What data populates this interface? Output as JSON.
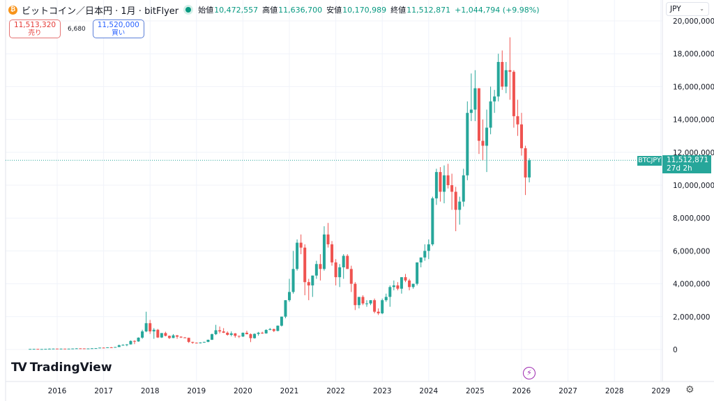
{
  "header": {
    "title": "ビットコイン／日本円 · 1月 · bitFlyer",
    "coin_icon": "bitcoin-icon",
    "open_label": "始値",
    "open": "10,472,557",
    "high_label": "高値",
    "high": "11,636,700",
    "low_label": "安値",
    "low": "10,170,989",
    "close_label": "終値",
    "close": "11,512,871",
    "change": "+1,044,794 (+9.98%)"
  },
  "trade": {
    "sell_price": "11,513,320",
    "sell_label": "売り",
    "spread": "6,680",
    "buy_price": "11,520,000",
    "buy_label": "買い"
  },
  "currency": "JPY",
  "price_label": {
    "symbol": "BTCJPY",
    "price": "11,512,871",
    "countdown": "27d 2h"
  },
  "logo": "TradingView",
  "colors": {
    "up": "#26a69a",
    "down": "#ef5350",
    "accent": "#26a69a"
  },
  "chart_data": {
    "type": "candlestick",
    "interval": "1 month",
    "y_ticks": [
      "0",
      "2,000,000",
      "4,000,000",
      "6,000,000",
      "8,000,000",
      "10,000,000",
      "12,000,000",
      "14,000,000",
      "16,000,000",
      "18,000,000",
      "20,000,000"
    ],
    "x_ticks": [
      "2016",
      "2017",
      "2018",
      "2019",
      "2020",
      "2021",
      "2022",
      "2023",
      "2024",
      "2025",
      "2026",
      "2027",
      "2028",
      "2029"
    ],
    "ylim": [
      0,
      20000000
    ],
    "grid": true,
    "last_price": 11512871,
    "columns": [
      "month",
      "open",
      "high",
      "low",
      "close"
    ],
    "candles": [
      [
        "2015-06",
        28000,
        33000,
        27000,
        32000
      ],
      [
        "2015-07",
        32000,
        38000,
        31000,
        35000
      ],
      [
        "2015-08",
        35000,
        36000,
        25000,
        28000
      ],
      [
        "2015-09",
        28000,
        30000,
        27000,
        29000
      ],
      [
        "2015-10",
        29000,
        40000,
        28000,
        37000
      ],
      [
        "2015-11",
        37000,
        60000,
        36000,
        46000
      ],
      [
        "2015-12",
        46000,
        56000,
        43000,
        52000
      ],
      [
        "2016-01",
        52000,
        55000,
        42000,
        45000
      ],
      [
        "2016-02",
        45000,
        52000,
        43000,
        50000
      ],
      [
        "2016-03",
        50000,
        51000,
        45000,
        47000
      ],
      [
        "2016-04",
        47000,
        52000,
        46000,
        50000
      ],
      [
        "2016-05",
        50000,
        60000,
        48000,
        58000
      ],
      [
        "2016-06",
        58000,
        80000,
        56000,
        68000
      ],
      [
        "2016-07",
        68000,
        72000,
        60000,
        65000
      ],
      [
        "2016-08",
        65000,
        67000,
        55000,
        60000
      ],
      [
        "2016-09",
        60000,
        64000,
        58000,
        62000
      ],
      [
        "2016-10",
        62000,
        75000,
        60000,
        73000
      ],
      [
        "2016-11",
        73000,
        85000,
        70000,
        80000
      ],
      [
        "2016-12",
        80000,
        115000,
        78000,
        112000
      ],
      [
        "2017-01",
        112000,
        125000,
        90000,
        110000
      ],
      [
        "2017-02",
        110000,
        135000,
        105000,
        130000
      ],
      [
        "2017-03",
        130000,
        150000,
        105000,
        120000
      ],
      [
        "2017-04",
        120000,
        155000,
        118000,
        150000
      ],
      [
        "2017-05",
        150000,
        300000,
        148000,
        255000
      ],
      [
        "2017-06",
        255000,
        320000,
        230000,
        280000
      ],
      [
        "2017-07",
        280000,
        330000,
        200000,
        310000
      ],
      [
        "2017-08",
        310000,
        550000,
        300000,
        520000
      ],
      [
        "2017-09",
        520000,
        560000,
        330000,
        490000
      ],
      [
        "2017-10",
        490000,
        740000,
        470000,
        720000
      ],
      [
        "2017-11",
        720000,
        1200000,
        650000,
        1100000
      ],
      [
        "2017-12",
        1100000,
        2300000,
        1050000,
        1600000
      ],
      [
        "2018-01",
        1600000,
        1800000,
        950000,
        1100000
      ],
      [
        "2018-02",
        1100000,
        1300000,
        650000,
        1200000
      ],
      [
        "2018-03",
        1200000,
        1250000,
        700000,
        730000
      ],
      [
        "2018-04",
        730000,
        1000000,
        700000,
        1000000
      ],
      [
        "2018-05",
        1000000,
        1080000,
        800000,
        830000
      ],
      [
        "2018-06",
        830000,
        850000,
        640000,
        700000
      ],
      [
        "2018-07",
        700000,
        940000,
        690000,
        860000
      ],
      [
        "2018-08",
        860000,
        880000,
        650000,
        780000
      ],
      [
        "2018-09",
        780000,
        800000,
        700000,
        730000
      ],
      [
        "2018-10",
        730000,
        760000,
        700000,
        710000
      ],
      [
        "2018-11",
        710000,
        720000,
        400000,
        460000
      ],
      [
        "2018-12",
        460000,
        470000,
        350000,
        410000
      ],
      [
        "2019-01",
        410000,
        430000,
        370000,
        380000
      ],
      [
        "2019-02",
        380000,
        440000,
        370000,
        420000
      ],
      [
        "2019-03",
        420000,
        470000,
        410000,
        460000
      ],
      [
        "2019-04",
        460000,
        600000,
        450000,
        590000
      ],
      [
        "2019-05",
        590000,
        970000,
        580000,
        930000
      ],
      [
        "2019-06",
        930000,
        1500000,
        880000,
        1170000
      ],
      [
        "2019-07",
        1170000,
        1400000,
        980000,
        1100000
      ],
      [
        "2019-08",
        1100000,
        1300000,
        1000000,
        1020000
      ],
      [
        "2019-09",
        1020000,
        1100000,
        840000,
        890000
      ],
      [
        "2019-10",
        890000,
        1100000,
        800000,
        980000
      ],
      [
        "2019-11",
        980000,
        1000000,
        720000,
        830000
      ],
      [
        "2019-12",
        830000,
        830000,
        700000,
        790000
      ],
      [
        "2020-01",
        790000,
        1030000,
        760000,
        1020000
      ],
      [
        "2020-02",
        1020000,
        1140000,
        920000,
        930000
      ],
      [
        "2020-03",
        930000,
        980000,
        450000,
        690000
      ],
      [
        "2020-04",
        690000,
        980000,
        660000,
        950000
      ],
      [
        "2020-05",
        950000,
        1070000,
        840000,
        1020000
      ],
      [
        "2020-06",
        1020000,
        1080000,
        950000,
        980000
      ],
      [
        "2020-07",
        980000,
        1230000,
        960000,
        1190000
      ],
      [
        "2020-08",
        1190000,
        1310000,
        1170000,
        1240000
      ],
      [
        "2020-09",
        1240000,
        1270000,
        1060000,
        1130000
      ],
      [
        "2020-10",
        1130000,
        1460000,
        1110000,
        1450000
      ],
      [
        "2020-11",
        1450000,
        2000000,
        1400000,
        2000000
      ],
      [
        "2020-12",
        2000000,
        3000000,
        1900000,
        3000000
      ],
      [
        "2021-01",
        3000000,
        4300000,
        2900000,
        3500000
      ],
      [
        "2021-02",
        3500000,
        6000000,
        3400000,
        4900000
      ],
      [
        "2021-03",
        4900000,
        6700000,
        4800000,
        6500000
      ],
      [
        "2021-04",
        6500000,
        7000000,
        5800000,
        6200000
      ],
      [
        "2021-05",
        6200000,
        6400000,
        3300000,
        4100000
      ],
      [
        "2021-06",
        4100000,
        4300000,
        3000000,
        3900000
      ],
      [
        "2021-07",
        3900000,
        4500000,
        3200000,
        4500000
      ],
      [
        "2021-08",
        4500000,
        5400000,
        4300000,
        5200000
      ],
      [
        "2021-09",
        5200000,
        5800000,
        4200000,
        4900000
      ],
      [
        "2021-10",
        4900000,
        7500000,
        4800000,
        7000000
      ],
      [
        "2021-11",
        7000000,
        7700000,
        6200000,
        6400000
      ],
      [
        "2021-12",
        6400000,
        6600000,
        5100000,
        5300000
      ],
      [
        "2022-01",
        5300000,
        5500000,
        3900000,
        4400000
      ],
      [
        "2022-02",
        4400000,
        5200000,
        3800000,
        5000000
      ],
      [
        "2022-03",
        5000000,
        5800000,
        4300000,
        5700000
      ],
      [
        "2022-04",
        5700000,
        5800000,
        4900000,
        4900000
      ],
      [
        "2022-05",
        4900000,
        5100000,
        3500000,
        4000000
      ],
      [
        "2022-06",
        4000000,
        4100000,
        2400000,
        2700000
      ],
      [
        "2022-07",
        2700000,
        3200000,
        2500000,
        3200000
      ],
      [
        "2022-08",
        3200000,
        3300000,
        2700000,
        2800000
      ],
      [
        "2022-09",
        2800000,
        3000000,
        2600000,
        2800000
      ],
      [
        "2022-10",
        2800000,
        3000000,
        2700000,
        3000000
      ],
      [
        "2022-11",
        3000000,
        3100000,
        2200000,
        2300000
      ],
      [
        "2022-12",
        2300000,
        2500000,
        2100000,
        2200000
      ],
      [
        "2023-01",
        2200000,
        3100000,
        2150000,
        3000000
      ],
      [
        "2023-02",
        3000000,
        3400000,
        2900000,
        3200000
      ],
      [
        "2023-03",
        3200000,
        3900000,
        2600000,
        3800000
      ],
      [
        "2023-04",
        3800000,
        4200000,
        3600000,
        3900000
      ],
      [
        "2023-05",
        3900000,
        4100000,
        3600000,
        3700000
      ],
      [
        "2023-06",
        3700000,
        4400000,
        3400000,
        4400000
      ],
      [
        "2023-07",
        4400000,
        4600000,
        4100000,
        4200000
      ],
      [
        "2023-08",
        4200000,
        4300000,
        3600000,
        3800000
      ],
      [
        "2023-09",
        3800000,
        4000000,
        3700000,
        4000000
      ],
      [
        "2023-10",
        4000000,
        5300000,
        3900000,
        5300000
      ],
      [
        "2023-11",
        5300000,
        5600000,
        5000000,
        5600000
      ],
      [
        "2023-12",
        5600000,
        6400000,
        5400000,
        6000000
      ],
      [
        "2024-01",
        6000000,
        6700000,
        5500000,
        6400000
      ],
      [
        "2024-02",
        6400000,
        9300000,
        6300000,
        9200000
      ],
      [
        "2024-03",
        9200000,
        11000000,
        8800000,
        10800000
      ],
      [
        "2024-04",
        10800000,
        11100000,
        9000000,
        9600000
      ],
      [
        "2024-05",
        9600000,
        11200000,
        8900000,
        10600000
      ],
      [
        "2024-06",
        10600000,
        11300000,
        9800000,
        10000000
      ],
      [
        "2024-07",
        10000000,
        10700000,
        8500000,
        9600000
      ],
      [
        "2024-08",
        9600000,
        9900000,
        7200000,
        8500000
      ],
      [
        "2024-09",
        8500000,
        9300000,
        7600000,
        9000000
      ],
      [
        "2024-10",
        9000000,
        11000000,
        8700000,
        10600000
      ],
      [
        "2024-11",
        10600000,
        15100000,
        10300000,
        14400000
      ],
      [
        "2024-12",
        14400000,
        16800000,
        13900000,
        14600000
      ],
      [
        "2025-01",
        14600000,
        17000000,
        13900000,
        15900000
      ],
      [
        "2025-02",
        15900000,
        15900000,
        11900000,
        12700000
      ],
      [
        "2025-03",
        12700000,
        14000000,
        11500000,
        12400000
      ],
      [
        "2025-04",
        12400000,
        14600000,
        10800000,
        13500000
      ],
      [
        "2025-05",
        13500000,
        16000000,
        13100000,
        15100000
      ],
      [
        "2025-06",
        15100000,
        15800000,
        14400000,
        15400000
      ],
      [
        "2025-07",
        15400000,
        18000000,
        15100000,
        17500000
      ],
      [
        "2025-08",
        17500000,
        18200000,
        15800000,
        16000000
      ],
      [
        "2025-09",
        16000000,
        17500000,
        15600000,
        17000000
      ],
      [
        "2025-10",
        17000000,
        19000000,
        15200000,
        16900000
      ],
      [
        "2025-11",
        16900000,
        17000000,
        13500000,
        14200000
      ],
      [
        "2025-12",
        14200000,
        15200000,
        13000000,
        13700000
      ],
      [
        "2026-01",
        13700000,
        14400000,
        11800000,
        12250000
      ],
      [
        "2026-02",
        12250000,
        12400000,
        9400000,
        10470000
      ],
      [
        "2026-03",
        10472557,
        11636700,
        10170989,
        11512871
      ]
    ]
  }
}
